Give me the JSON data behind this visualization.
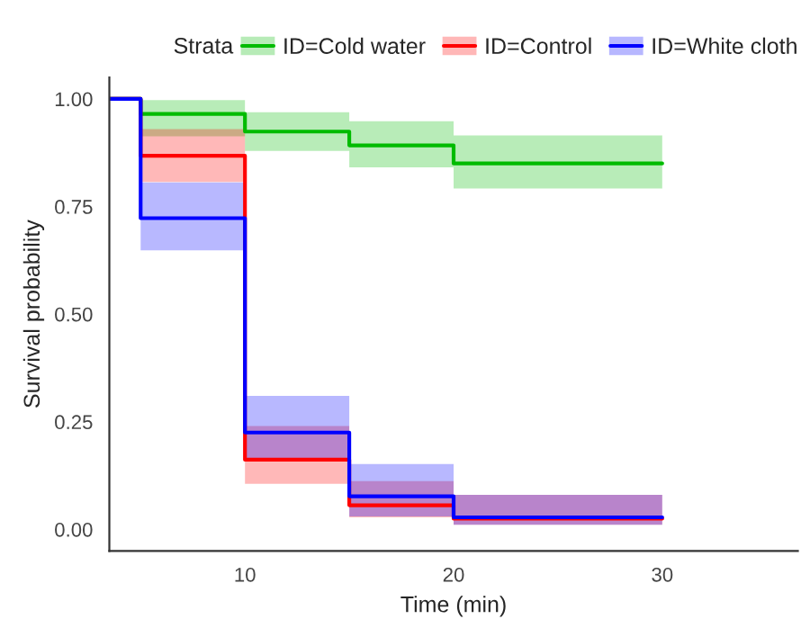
{
  "chart_data": {
    "type": "step",
    "xlabel": "Time (min)",
    "ylabel": "Survival probability",
    "legend_title": "Strata",
    "legend": "top",
    "xlim": [
      3.5,
      36.5
    ],
    "xticks": [
      10,
      20,
      30
    ],
    "ylim": [
      -0.05,
      1.05
    ],
    "yticks": [
      {
        "value": 0,
        "label": "0.00"
      },
      {
        "value": 0.25,
        "label": "0.25"
      },
      {
        "value": 0.5,
        "label": "0.50"
      },
      {
        "value": 0.75,
        "label": "0.75"
      },
      {
        "value": 1,
        "label": "1.00"
      }
    ],
    "grid": false,
    "series": [
      {
        "name": "ID=Cold water",
        "color": "#00bb00",
        "x": [
          3.5,
          5,
          10,
          15,
          20,
          30
        ],
        "values": [
          1,
          0.965,
          0.924,
          0.892,
          0.85,
          0.85
        ],
        "lower": [
          null,
          0.913,
          0.879,
          0.841,
          0.792,
          0.792
        ],
        "upper": [
          null,
          0.997,
          0.969,
          0.948,
          0.915,
          0.915
        ]
      },
      {
        "name": "ID=Control",
        "color": "#ff0000",
        "x": [
          3.5,
          5,
          10,
          15,
          20,
          30
        ],
        "values": [
          1,
          0.868,
          0.162,
          0.056,
          0.025,
          0.025
        ],
        "lower": [
          null,
          0.807,
          0.106,
          0.028,
          0.011,
          0.011
        ],
        "upper": [
          null,
          0.93,
          0.24,
          0.112,
          0.08,
          0.08
        ]
      },
      {
        "name": "ID=White cloth",
        "color": "#0000ff",
        "x": [
          3.5,
          5,
          10,
          15,
          20,
          30
        ],
        "values": [
          1,
          0.723,
          0.225,
          0.077,
          0.028,
          0.028
        ],
        "lower": [
          null,
          0.648,
          0.16,
          0.03,
          0.011,
          0.011
        ],
        "upper": [
          null,
          0.806,
          0.31,
          0.152,
          0.08,
          0.08
        ]
      }
    ]
  }
}
